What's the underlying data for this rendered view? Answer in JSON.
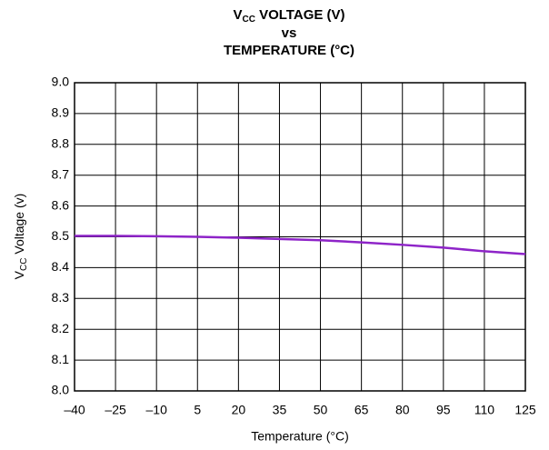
{
  "chart_data": {
    "type": "line",
    "title": {
      "line1": [
        "V",
        "CC",
        " VOLTAGE (V)"
      ],
      "line2": "vs",
      "line3": "TEMPERATURE (°C)"
    },
    "xlabel": "Temperature (°C)",
    "ylabel": [
      "V",
      "CC",
      " Voltage (v)"
    ],
    "x": [
      -40,
      -25,
      -10,
      5,
      20,
      35,
      50,
      65,
      80,
      95,
      110,
      125
    ],
    "series": [
      {
        "color": "#8e24c8",
        "values": [
          8.503,
          8.503,
          8.502,
          8.5,
          8.497,
          8.493,
          8.489,
          8.482,
          8.474,
          8.465,
          8.453,
          8.444
        ]
      }
    ],
    "xlim": [
      -40,
      125
    ],
    "xticks": [
      {
        "value": -40,
        "label": "–40"
      },
      {
        "value": -25,
        "label": "–25"
      },
      {
        "value": -10,
        "label": "–10"
      },
      5,
      20,
      35,
      50,
      65,
      80,
      95,
      110,
      125
    ],
    "ylim": [
      8.0,
      9.0
    ],
    "yticks": [
      {
        "value": 8.0,
        "label": "8.0"
      },
      8.1,
      8.2,
      8.3,
      8.4,
      8.5,
      8.6,
      8.7,
      8.8,
      8.9,
      {
        "value": 9.0,
        "label": "9.0"
      }
    ],
    "grid": true
  }
}
